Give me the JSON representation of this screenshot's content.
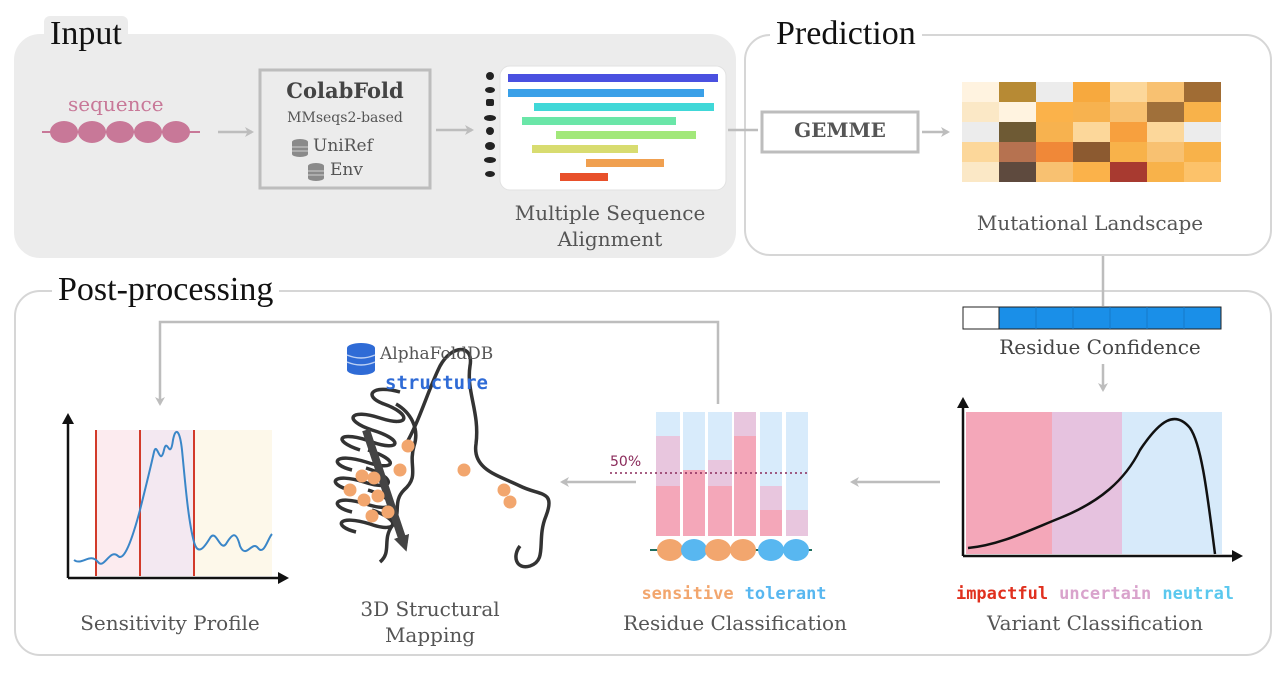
{
  "sections": {
    "input": "Input",
    "prediction": "Prediction",
    "postprocessing": "Post-processing"
  },
  "input": {
    "sequence_label": "sequence",
    "colabfold": {
      "title": "ColabFold",
      "subtitle": "MMseqs2-based",
      "db1": "UniRef",
      "db2": "Env"
    },
    "msa_caption_line1": "Multiple Sequence",
    "msa_caption_line2": "Alignment"
  },
  "prediction": {
    "gemme_label": "GEMME",
    "landscape_caption": "Mutational Landscape"
  },
  "post": {
    "residue_confidence": "Residue Confidence",
    "variant_classification": "Variant Classification",
    "residue_classification": "Residue Classification",
    "structural_mapping_line1": "3D Structural",
    "structural_mapping_line2": "Mapping",
    "sensitivity_profile": "Sensitivity Profile",
    "alphafold_db": "AlphaFoldDB",
    "structure": "structure",
    "threshold_label": "50%",
    "legend_sensitive": "sensitive",
    "legend_tolerant": "tolerant",
    "legend_impactful": "impactful",
    "legend_uncertain": "uncertain",
    "legend_neutral": "neutral"
  },
  "colors": {
    "sequence_pink": "#c87898",
    "sensitive": "#f2a66e",
    "tolerant": "#58b7f0",
    "impactful": "#e0301e",
    "uncertain": "#d9a3cc",
    "neutral": "#5bc8ee",
    "confidence_blue": "#1a8fe8",
    "structure_blue": "#2f6bd6"
  }
}
